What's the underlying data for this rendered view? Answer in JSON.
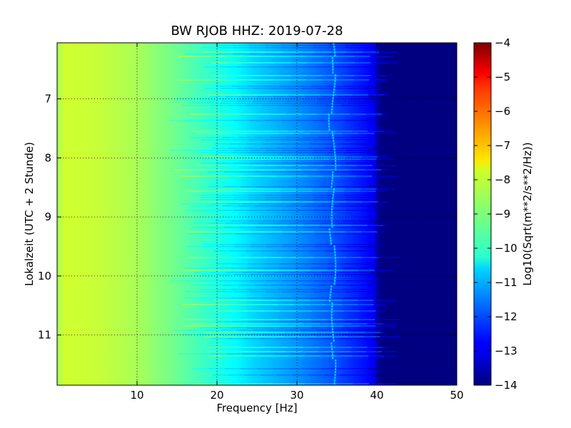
{
  "chart_data": {
    "type": "heatmap",
    "title": "BW RJOB HHZ: 2019-07-28",
    "xlabel": "Frequency [Hz]",
    "ylabel": "Lokalzeit (UTC + 2 Stunde)",
    "xlim": [
      0,
      50
    ],
    "ylim": [
      6.05,
      11.85
    ],
    "y_inverted": true,
    "x_ticks": [
      10,
      20,
      30,
      40,
      50
    ],
    "x_tick_labels": [
      "10",
      "20",
      "30",
      "40",
      "50"
    ],
    "y_ticks": [
      7,
      8,
      9,
      10,
      11
    ],
    "y_tick_labels": [
      "7",
      "8",
      "9",
      "10",
      "11"
    ],
    "grid": true,
    "colormap": "jet",
    "colorbar": {
      "label": "Log10(Sqrt(m**2/s**2/Hz))",
      "range": [
        -14,
        -4
      ],
      "ticks": [
        -4,
        -5,
        -6,
        -7,
        -8,
        -9,
        -10,
        -11,
        -12,
        -13,
        -14
      ],
      "tick_labels": [
        "−4",
        "−5",
        "−6",
        "−7",
        "−8",
        "−9",
        "−10",
        "−11",
        "−12",
        "−13",
        "−14"
      ]
    },
    "spectrum_profile": {
      "frequency_hz": [
        0,
        1,
        5,
        10,
        15,
        20,
        25,
        30,
        35,
        39.5,
        40.5,
        50
      ],
      "value_log10": [
        -8.6,
        -8.2,
        -8.3,
        -8.6,
        -9.2,
        -9.9,
        -10.7,
        -11.3,
        -12.0,
        -12.8,
        -14.0,
        -14.0
      ]
    },
    "tone_line": {
      "frequency_hz": 34.5,
      "value_log10": -10.5
    }
  }
}
